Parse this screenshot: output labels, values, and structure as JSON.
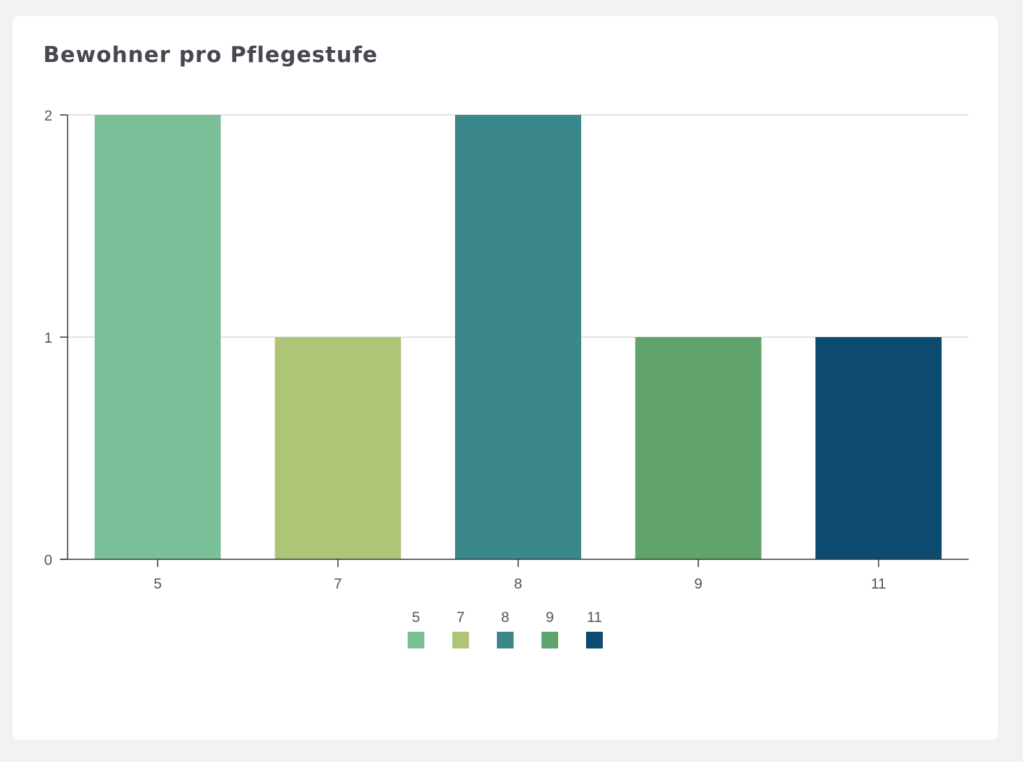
{
  "card": {
    "title": "Bewohner pro Pflegestufe"
  },
  "chart_data": {
    "type": "bar",
    "title": "Bewohner pro Pflegestufe",
    "xlabel": "",
    "ylabel": "",
    "categories": [
      "5",
      "7",
      "8",
      "9",
      "11"
    ],
    "values": [
      2,
      1,
      2,
      1,
      1
    ],
    "colors": [
      "#7bbf98",
      "#aec477",
      "#3a8889",
      "#61a36c",
      "#0d4a6f"
    ],
    "ylim": [
      0,
      2
    ],
    "yticks": [
      "0",
      "1",
      "2"
    ],
    "grid": true,
    "legend": {
      "position": "bottom-center",
      "entries": [
        "5",
        "7",
        "8",
        "9",
        "11"
      ]
    }
  }
}
